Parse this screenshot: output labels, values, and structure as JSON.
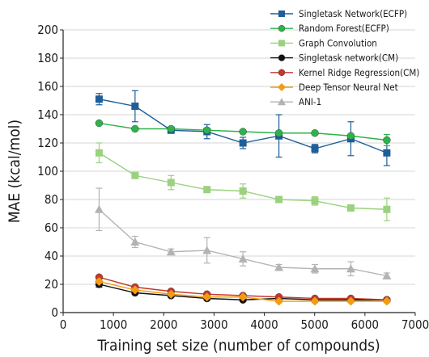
{
  "chart_data": {
    "type": "line",
    "xlabel": "Training set size (number of compounds)",
    "ylabel": "MAE (kcal/mol)",
    "xlim": [
      0,
      7000
    ],
    "ylim": [
      0,
      200
    ],
    "x_ticks": [
      "0",
      "1000",
      "2000",
      "3000",
      "4000",
      "5000",
      "6000",
      "7000"
    ],
    "y_ticks": [
      "0",
      "20",
      "40",
      "60",
      "80",
      "100",
      "120",
      "140",
      "160",
      "180",
      "200"
    ],
    "grid": "horizontal",
    "legend_position": "top-right",
    "x": [
      715,
      1430,
      2145,
      2860,
      3575,
      4290,
      5005,
      5720,
      6435
    ],
    "series": [
      {
        "name": "Singletask Network(ECFP)",
        "color": "#1f5e99",
        "marker": "square",
        "values": [
          151,
          146,
          129,
          128,
          120,
          125,
          116,
          123,
          113
        ],
        "errors": [
          4,
          11,
          2,
          5,
          4,
          15,
          3,
          12,
          9
        ]
      },
      {
        "name": "Random Forest(ECFP)",
        "color": "#2eb24a",
        "marker": "circle",
        "values": [
          134,
          130,
          130,
          129,
          128,
          127,
          127,
          125,
          122
        ],
        "errors": [
          1,
          1,
          1,
          1,
          1,
          1,
          1,
          1,
          4
        ]
      },
      {
        "name": "Graph Convolution",
        "color": "#9bd17f",
        "marker": "square",
        "values": [
          113,
          97,
          92,
          87,
          86,
          80,
          79,
          74,
          73
        ],
        "errors": [
          7,
          1,
          5,
          2,
          5,
          1,
          3,
          1,
          8
        ]
      },
      {
        "name": "Singletask network(CM)",
        "color": "#111111",
        "marker": "circle",
        "values": [
          20,
          14,
          12,
          10,
          9,
          10,
          9,
          9,
          9
        ],
        "errors": [
          2,
          1,
          1,
          1,
          1,
          1,
          1,
          1,
          1
        ]
      },
      {
        "name": "Kernel Ridge Regression(CM)",
        "color": "#c0392b",
        "marker": "circle",
        "values": [
          25,
          18,
          15,
          13,
          12,
          11,
          10,
          10,
          9
        ],
        "errors": [
          1,
          1,
          1,
          1,
          1,
          1,
          1,
          1,
          1
        ]
      },
      {
        "name": "Deep Tensor Neural Net",
        "color": "#f39c12",
        "marker": "diamond",
        "values": [
          22,
          16,
          13,
          11,
          11,
          8,
          8,
          8,
          8
        ],
        "errors": [
          1,
          1,
          1,
          1,
          1,
          1,
          1,
          1,
          1
        ]
      },
      {
        "name": "ANI-1",
        "color": "#b3b3b3",
        "marker": "triangle",
        "values": [
          73,
          50,
          43,
          44,
          38,
          32,
          31,
          31,
          26
        ],
        "errors": [
          15,
          4,
          2,
          9,
          5,
          2,
          3,
          5,
          2
        ]
      }
    ]
  }
}
